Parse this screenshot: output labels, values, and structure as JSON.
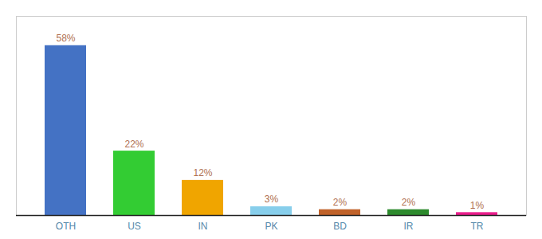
{
  "chart_data": {
    "type": "bar",
    "categories": [
      "OTH",
      "US",
      "IN",
      "PK",
      "BD",
      "IR",
      "TR"
    ],
    "values": [
      58,
      22,
      12,
      3,
      2,
      2,
      1
    ],
    "value_labels": [
      "58%",
      "22%",
      "12%",
      "3%",
      "2%",
      "2%",
      "1%"
    ],
    "colors": [
      "#4472c4",
      "#33cc33",
      "#f0a500",
      "#87ceeb",
      "#c0622a",
      "#2d8a2d",
      "#e91e8c"
    ],
    "ylim": [
      0,
      68
    ],
    "data_labels": true,
    "tick_labels": "x"
  }
}
